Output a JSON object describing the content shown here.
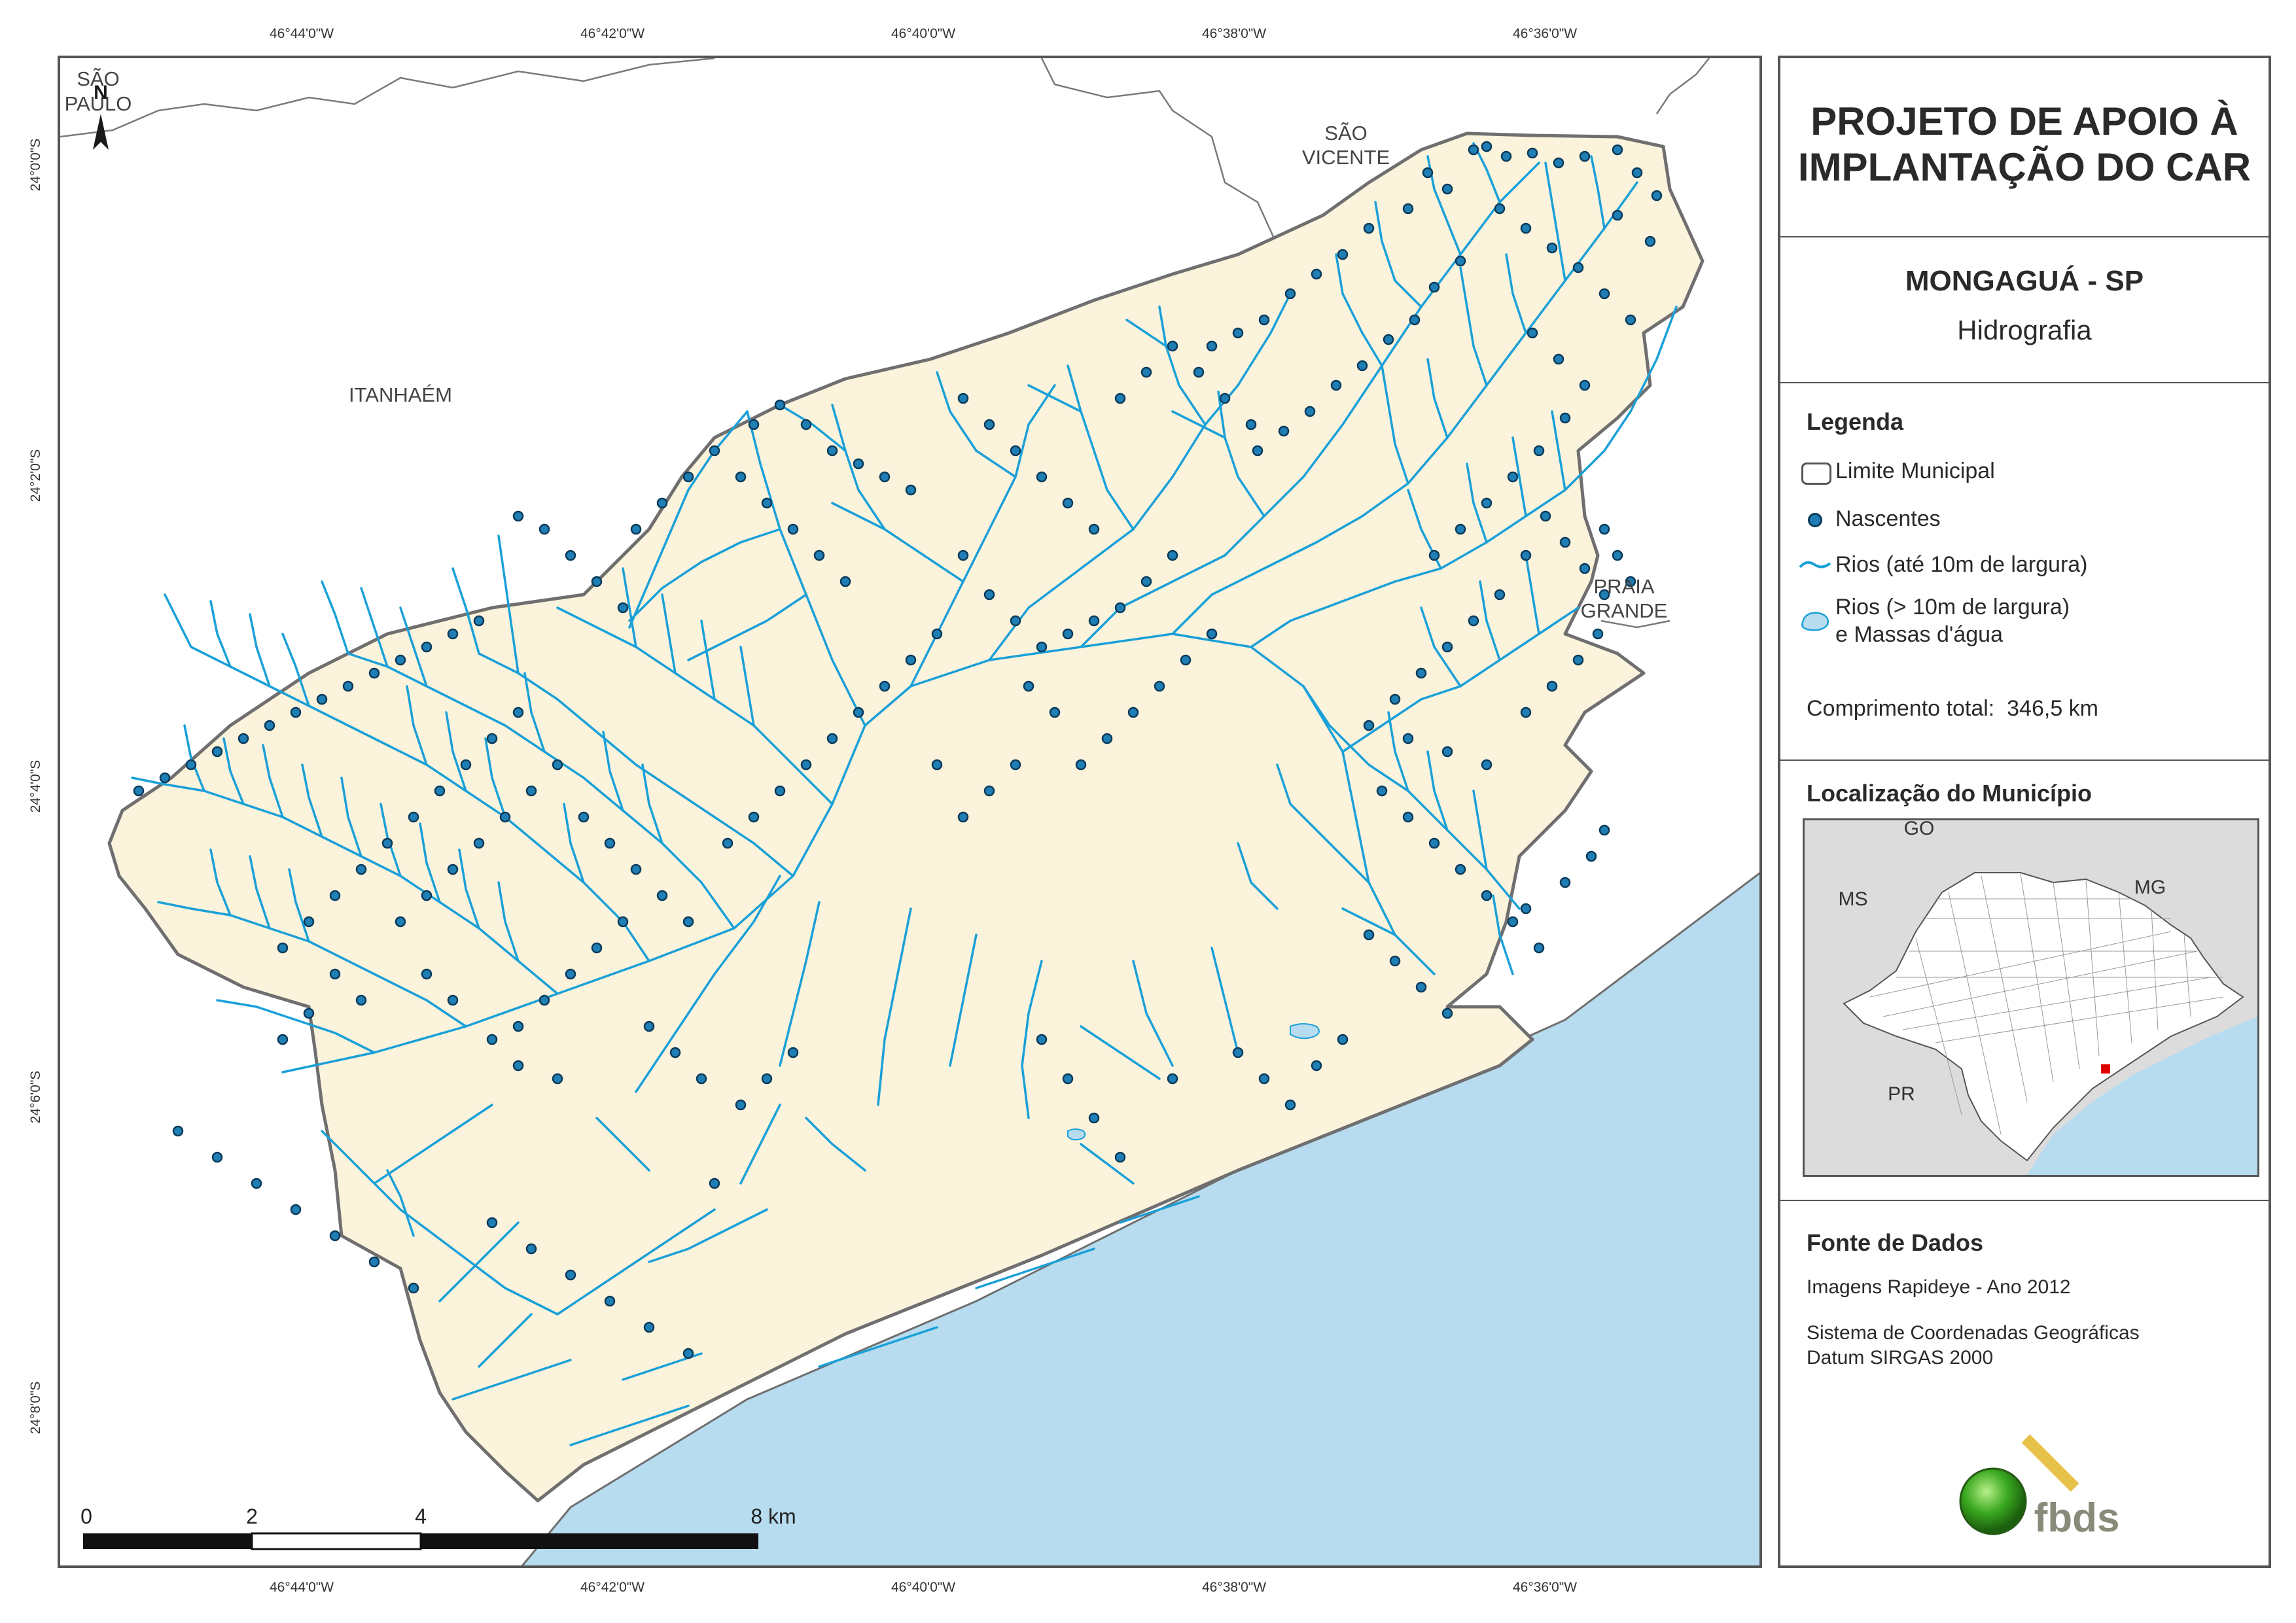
{
  "coordinates": {
    "top": [
      "46°44'0\"W",
      "46°42'0\"W",
      "46°40'0\"W",
      "46°38'0\"W",
      "46°36'0\"W"
    ],
    "bottom": [
      "46°44'0\"W",
      "46°42'0\"W",
      "46°40'0\"W",
      "46°38'0\"W",
      "46°36'0\"W"
    ],
    "left": [
      "24°0'0\"S",
      "24°2'0\"S",
      "24°4'0\"S",
      "24°6'0\"S",
      "24°8'0\"S"
    ]
  },
  "map": {
    "north_arrow": "N",
    "places": {
      "sao_paulo": [
        "SÃO",
        "PAULO"
      ],
      "sao_vicente": [
        "SÃO",
        "VICENTE"
      ],
      "itanhaem": "ITANHAÉM",
      "praia_grande": [
        "PRAIA",
        "GRANDE"
      ]
    },
    "scale_bar": {
      "labels": [
        "0",
        "2",
        "4",
        "8 km"
      ]
    },
    "colors": {
      "land": "#fbf3dc",
      "sea": "#b7dcf0",
      "river": "#1aa0d8",
      "spring": "#1f7fb4",
      "boundary": "#6f6f6f"
    }
  },
  "panel": {
    "title": [
      "PROJETO DE APOIO À",
      "IMPLANTAÇÃO DO CAR"
    ],
    "municipality": "MONGAGUÁ - SP",
    "theme": "Hidrografia",
    "legend": {
      "heading": "Legenda",
      "items": [
        {
          "symbol": "boundary-box",
          "label": "Limite Municipal"
        },
        {
          "symbol": "spring-dot",
          "label": "Nascentes"
        },
        {
          "symbol": "river-line",
          "label": "Rios (até 10m de largura)"
        },
        {
          "symbol": "water-polygon",
          "label": [
            "Rios (> 10m de largura)",
            "e Massas d'água"
          ]
        }
      ]
    },
    "total_length": {
      "label": "Comprimento total:",
      "value": "346,5 km"
    },
    "location": {
      "heading": "Localização do Município",
      "labels": {
        "go": "GO",
        "ms": "MS",
        "mg": "MG",
        "pr": "PR"
      }
    },
    "sources": {
      "heading": "Fonte de Dados",
      "lines": [
        "Imagens Rapideye - Ano 2012",
        "Sistema de Coordenadas Geográficas",
        "Datum SIRGAS 2000"
      ]
    },
    "logo": "fbds"
  }
}
